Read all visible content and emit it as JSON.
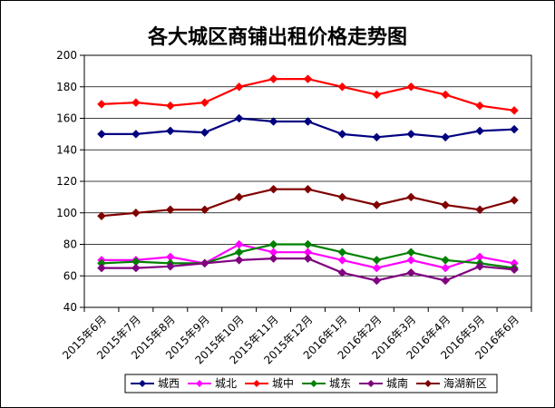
{
  "chart_data": {
    "type": "line",
    "title": "各大城区商铺出租价格走势图",
    "xlabel": "",
    "ylabel": "",
    "ylim": [
      40,
      200
    ],
    "yticks": [
      40,
      60,
      80,
      100,
      120,
      140,
      160,
      180,
      200
    ],
    "grid": true,
    "legend_position": "bottom",
    "categories": [
      "2015年6月",
      "2015年7月",
      "2015年8月",
      "2015年9月",
      "2015年10月",
      "2015年11月",
      "2015年12月",
      "2016年1月",
      "2016年2月",
      "2016年3月",
      "2016年4月",
      "2016年5月",
      "2016年6月"
    ],
    "series": [
      {
        "name": "城西",
        "color": "#000080",
        "marker": "diamond",
        "values": [
          150,
          150,
          152,
          151,
          160,
          158,
          158,
          150,
          148,
          150,
          148,
          152,
          153
        ]
      },
      {
        "name": "城北",
        "color": "#ff00ff",
        "marker": "diamond",
        "values": [
          70,
          70,
          72,
          68,
          80,
          75,
          75,
          70,
          65,
          70,
          65,
          72,
          68
        ]
      },
      {
        "name": "城中",
        "color": "#ff0000",
        "marker": "diamond",
        "values": [
          169,
          170,
          168,
          170,
          180,
          185,
          185,
          180,
          175,
          180,
          175,
          168,
          165
        ]
      },
      {
        "name": "城东",
        "color": "#008000",
        "marker": "diamond",
        "values": [
          68,
          69,
          68,
          68,
          75,
          80,
          80,
          75,
          70,
          75,
          70,
          68,
          65
        ]
      },
      {
        "name": "城南",
        "color": "#800080",
        "marker": "diamond",
        "values": [
          65,
          65,
          66,
          68,
          70,
          71,
          71,
          62,
          57,
          62,
          57,
          66,
          64
        ]
      },
      {
        "name": "海湖新区",
        "color": "#800000",
        "marker": "diamond",
        "values": [
          98,
          100,
          102,
          102,
          110,
          115,
          115,
          110,
          105,
          110,
          105,
          102,
          108
        ]
      }
    ]
  }
}
